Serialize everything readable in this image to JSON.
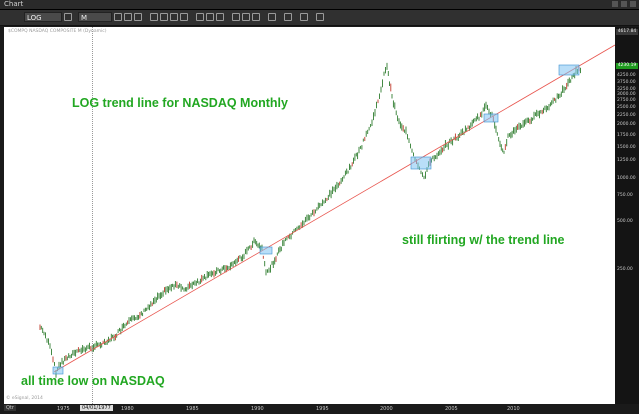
{
  "window": {
    "title": "Chart"
  },
  "toolbar": {
    "symbol_value": "LOG",
    "period_value": "M",
    "icons": [
      "zoom-icon",
      "cursor-icon",
      "crosshair-icon",
      "pencil-icon",
      "eraser-icon",
      "square-icon",
      "text-icon",
      "zoom-in-icon",
      "zoom-out-icon",
      "lock-icon",
      "arrow-icon",
      "line-icon",
      "fib-icon",
      "pencil-icon",
      "ruler-icon",
      "gear-icon",
      "signal-icon",
      "star-icon"
    ]
  },
  "chart": {
    "legend": "$COMPQ  NASDAQ COMPOSITE  M  (Dynamic)",
    "watermark": "© eSignal, 2014",
    "cursor_date": "04/01/1977",
    "period_tag": "Qtr",
    "cross_tag_value": "4617.84",
    "price_tag_value": "4230.19",
    "y_axis_labels": [
      "4617.84",
      "4250.00",
      "3750.00",
      "3250.00",
      "3000.00",
      "2750.00",
      "2500.00",
      "2250.00",
      "2000.00",
      "1750.00",
      "1500.00",
      "1250.00",
      "1000.00",
      "750.00",
      "500.00",
      "250.00"
    ],
    "x_axis_labels": [
      "1975",
      "1980",
      "1985",
      "1990",
      "1995",
      "2000",
      "2005",
      "2010"
    ],
    "annotations": {
      "title": "LOG trend line for NASDAQ Monthly",
      "flirting": "still flirting w/ the trend line",
      "low": "all time low on NASDAQ"
    },
    "colors": {
      "candles": "#2f7d2f",
      "trend": "#e8554e",
      "highlight": "#7fc3f2",
      "text": "#22a722"
    }
  }
}
